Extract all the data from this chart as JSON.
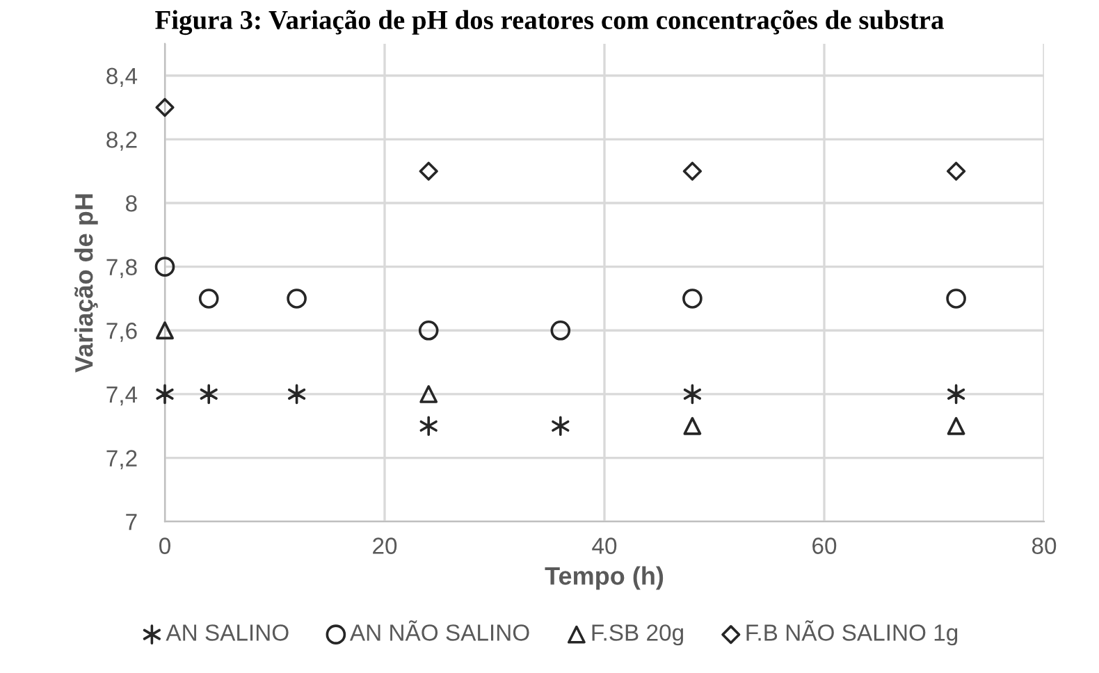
{
  "chart_data": {
    "type": "scatter",
    "title": "Figura 3: Variação de pH dos reatores com concentrações de substra",
    "xlabel": "Tempo (h)",
    "ylabel": "Variação de pH",
    "series": [
      {
        "name": "AN SALINO",
        "color": "#262626",
        "marker": "cross",
        "x": [
          0,
          4,
          12,
          24,
          36,
          48,
          72
        ],
        "values": [
          7.4,
          7.4,
          7.4,
          7.3,
          7.3,
          7.4,
          7.4
        ]
      },
      {
        "name": "AN NÃO SALINO",
        "color": "#262626",
        "marker": "circle",
        "x": [
          0,
          4,
          12,
          24,
          36,
          48,
          72
        ],
        "values": [
          7.8,
          7.7,
          7.7,
          7.6,
          7.6,
          7.7,
          7.7
        ]
      },
      {
        "name": "F.SB 20g",
        "color": "#262626",
        "marker": "triangle",
        "x": [
          0,
          24,
          48,
          72
        ],
        "values": [
          7.6,
          7.4,
          7.3,
          7.3
        ]
      },
      {
        "name": "F.B NÃO SALINO 1g",
        "color": "#262626",
        "marker": "diamond",
        "x": [
          0,
          24,
          48,
          72
        ],
        "values": [
          8.3,
          8.1,
          8.1,
          8.1
        ]
      }
    ],
    "xlim": [
      0,
      80
    ],
    "xticks": [
      0,
      20,
      40,
      60,
      80
    ],
    "ylim": [
      7,
      8.5
    ],
    "yticks": [
      7,
      {
        "value": 7.2,
        "label": "7,2"
      },
      {
        "value": 7.4,
        "label": "7,4"
      },
      {
        "value": 7.6,
        "label": "7,6"
      },
      {
        "value": 7.8,
        "label": "7,8"
      },
      8,
      {
        "value": 8.2,
        "label": "8,2"
      },
      {
        "value": 8.4,
        "label": "8,4"
      }
    ],
    "grid": true,
    "legend": "bottom"
  }
}
